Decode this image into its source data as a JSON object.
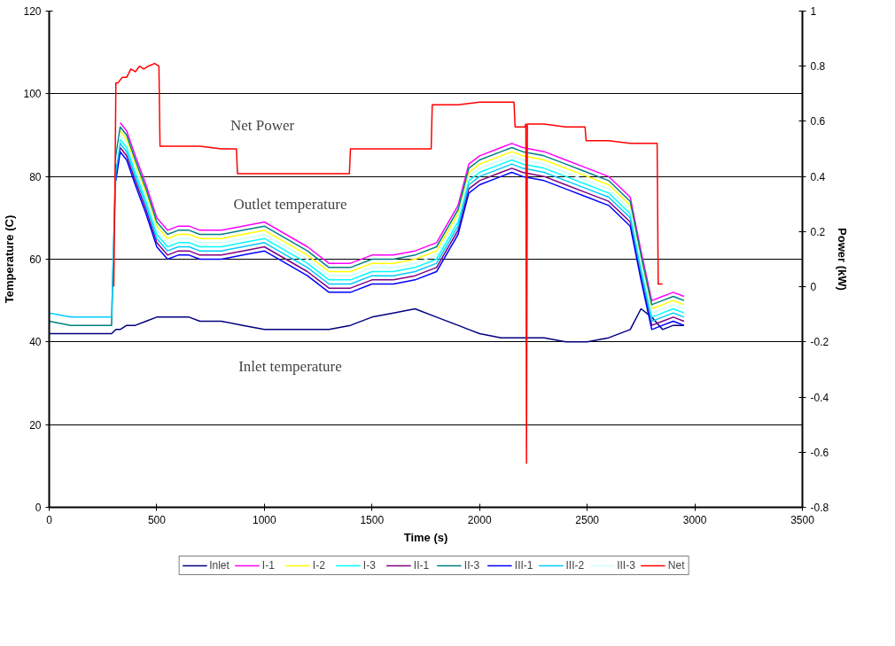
{
  "chart_data": {
    "type": "line",
    "xlabel": "Time (s)",
    "ylabel": "Temperature (C)",
    "y2label": "Power (kW)",
    "xlim": [
      0,
      3500
    ],
    "xticks": [
      0,
      500,
      1000,
      1500,
      2000,
      2500,
      3000,
      3500
    ],
    "ylim": [
      0,
      120
    ],
    "yticks": [
      0,
      20,
      40,
      60,
      80,
      100,
      120
    ],
    "y2lim": [
      -0.8,
      1
    ],
    "y2ticks": [
      -0.8,
      -0.6,
      -0.4,
      -0.2,
      0,
      0.2,
      0.4,
      0.6,
      0.8,
      1
    ],
    "grid": "y",
    "legend": "bottom",
    "marker": "none",
    "line_style": "solid",
    "annotations": [
      "Net Power",
      "Outlet temperature",
      "Inlet temperature"
    ],
    "x": [
      0,
      100,
      200,
      290,
      310,
      330,
      360,
      400,
      450,
      500,
      550,
      600,
      650,
      700,
      800,
      900,
      1000,
      1100,
      1200,
      1300,
      1400,
      1500,
      1600,
      1700,
      1800,
      1900,
      1950,
      2000,
      2100,
      2150,
      2200,
      2300,
      2400,
      2500,
      2600,
      2700,
      2750,
      2800,
      2850,
      2900,
      2950
    ],
    "series": [
      {
        "name": "Inlet",
        "color": "#000080",
        "values": [
          42,
          42,
          42,
          42,
          43,
          43,
          44,
          44,
          45,
          46,
          46,
          46,
          46,
          45,
          45,
          44,
          43,
          43,
          43,
          43,
          44,
          46,
          47,
          48,
          46,
          44,
          43,
          42,
          41,
          41,
          41,
          41,
          40,
          40,
          41,
          43,
          48,
          46,
          43,
          44,
          44
        ]
      },
      {
        "name": "I-1",
        "color": "#ff00ff",
        "values": [
          null,
          null,
          null,
          null,
          null,
          93,
          91,
          85,
          78,
          70,
          67,
          68,
          68,
          67,
          67,
          68,
          69,
          66,
          63,
          59,
          59,
          61,
          61,
          62,
          64,
          73,
          83,
          85,
          87,
          88,
          87,
          86,
          84,
          82,
          80,
          75,
          62,
          50,
          51,
          52,
          51
        ]
      },
      {
        "name": "I-2",
        "color": "#ffff00",
        "values": [
          null,
          null,
          null,
          null,
          null,
          91,
          89,
          83,
          76,
          68,
          65,
          66,
          66,
          65,
          65,
          66,
          67,
          64,
          61,
          57,
          57,
          59,
          59,
          60,
          62,
          71,
          81,
          83,
          85,
          86,
          85,
          84,
          82,
          80,
          78,
          73,
          60,
          48,
          49,
          50,
          49
        ]
      },
      {
        "name": "I-3",
        "color": "#00ffff",
        "values": [
          null,
          null,
          null,
          null,
          82,
          89,
          87,
          81,
          74,
          66,
          63,
          64,
          64,
          63,
          63,
          64,
          65,
          62,
          59,
          55,
          55,
          57,
          57,
          58,
          60,
          69,
          79,
          81,
          83,
          84,
          83,
          82,
          80,
          78,
          76,
          71,
          58,
          46,
          47,
          48,
          47
        ]
      },
      {
        "name": "II-1",
        "color": "#800080",
        "values": [
          null,
          null,
          null,
          null,
          80,
          87,
          85,
          79,
          72,
          64,
          61,
          62,
          62,
          61,
          61,
          62,
          63,
          60,
          57,
          53,
          53,
          55,
          55,
          56,
          58,
          67,
          77,
          79,
          81,
          82,
          81,
          80,
          78,
          76,
          74,
          69,
          56,
          44,
          45,
          46,
          45
        ]
      },
      {
        "name": "II-3",
        "color": "#008080",
        "values": [
          45,
          44,
          44,
          44,
          85,
          92,
          90,
          84,
          77,
          69,
          66,
          67,
          67,
          66,
          66,
          67,
          68,
          65,
          62,
          58,
          58,
          60,
          60,
          61,
          63,
          72,
          82,
          84,
          86,
          87,
          86,
          85,
          83,
          81,
          79,
          74,
          61,
          49,
          50,
          51,
          50
        ]
      },
      {
        "name": "III-1",
        "color": "#0000ff",
        "values": [
          null,
          null,
          null,
          null,
          79,
          86,
          84,
          78,
          71,
          63,
          60,
          61,
          61,
          60,
          60,
          61,
          62,
          59,
          56,
          52,
          52,
          54,
          54,
          55,
          57,
          66,
          76,
          78,
          80,
          81,
          80,
          79,
          77,
          75,
          73,
          68,
          55,
          43,
          44,
          45,
          44
        ]
      },
      {
        "name": "III-2",
        "color": "#00ccff",
        "values": [
          47,
          46,
          46,
          46,
          81,
          88,
          86,
          80,
          73,
          65,
          62,
          63,
          63,
          62,
          62,
          63,
          64,
          61,
          58,
          54,
          54,
          56,
          56,
          57,
          59,
          68,
          78,
          80,
          82,
          83,
          82,
          81,
          79,
          77,
          75,
          70,
          57,
          45,
          46,
          47,
          46
        ]
      },
      {
        "name": "III-3",
        "color": "#ccffff",
        "values": [
          null,
          null,
          null,
          null,
          83,
          90,
          88,
          82,
          75,
          67,
          64,
          65,
          65,
          64,
          64,
          65,
          66,
          63,
          60,
          56,
          56,
          58,
          58,
          59,
          61,
          70,
          80,
          82,
          84,
          85,
          84,
          83,
          81,
          79,
          77,
          72,
          59,
          47,
          48,
          49,
          48
        ]
      },
      {
        "name": "Net",
        "color": "#ff0000",
        "axis": "y2",
        "x": [
          300,
          305,
          310,
          320,
          340,
          360,
          380,
          400,
          420,
          440,
          460,
          490,
          510,
          515,
          600,
          700,
          800,
          870,
          875,
          1000,
          1200,
          1395,
          1400,
          1500,
          1600,
          1775,
          1780,
          1900,
          2000,
          2100,
          2160,
          2165,
          2210,
          2215,
          2218,
          2222,
          2300,
          2400,
          2490,
          2495,
          2600,
          2700,
          2825,
          2830,
          2850
        ],
        "values": [
          0.0,
          0.3,
          0.74,
          0.74,
          0.76,
          0.76,
          0.79,
          0.78,
          0.8,
          0.79,
          0.8,
          0.81,
          0.8,
          0.51,
          0.51,
          0.51,
          0.5,
          0.5,
          0.41,
          0.41,
          0.41,
          0.41,
          0.5,
          0.5,
          0.5,
          0.5,
          0.66,
          0.66,
          0.67,
          0.67,
          0.67,
          0.58,
          0.58,
          0.59,
          -0.64,
          0.59,
          0.59,
          0.58,
          0.58,
          0.53,
          0.53,
          0.52,
          0.52,
          0.01,
          0.01
        ]
      }
    ]
  }
}
